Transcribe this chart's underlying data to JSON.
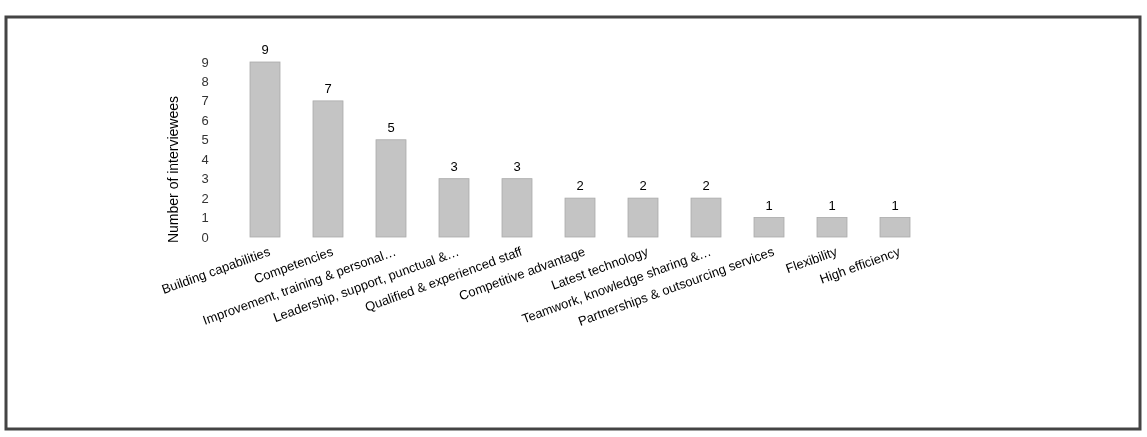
{
  "chart_data": {
    "type": "bar",
    "ylabel": "Number of interviewees",
    "categories": [
      "Building capabilities",
      "Competencies",
      "Improvement, training & personal…",
      "Leadership, support, punctual &…",
      "Qualified & experienced staff",
      "Competitive advantage",
      "Latest technology",
      "Teamwork, knowledge sharing &…",
      "Partnerships & outsourcing services",
      "Flexibility",
      "High efficiency"
    ],
    "values": [
      9,
      7,
      5,
      3,
      3,
      2,
      2,
      2,
      1,
      1,
      1
    ],
    "color": "#c4c4c4",
    "data_labels": true,
    "ylim": [
      0,
      9
    ],
    "yticks": [
      0,
      1,
      2,
      3,
      4,
      5,
      6,
      7,
      8,
      9
    ],
    "grid": false
  }
}
